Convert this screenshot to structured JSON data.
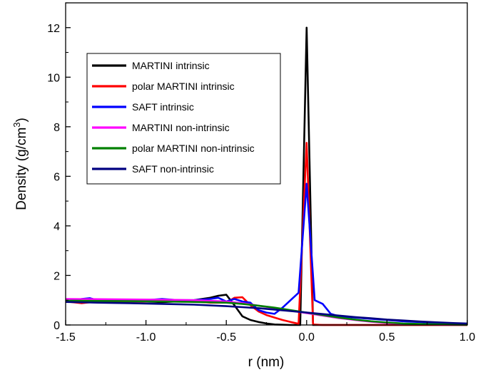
{
  "chart_data": {
    "type": "line",
    "title": "",
    "xlabel": "r (nm)",
    "ylabel": "Density (g/cm",
    "ylabel_superscript": "3",
    "ylabel_close": ")",
    "xlim": [
      -1.5,
      1.0
    ],
    "ylim": [
      0,
      13
    ],
    "x_ticks": [
      -1.5,
      -1.0,
      -0.5,
      0.0,
      0.5,
      1.0
    ],
    "x_tick_labels": [
      "-1.5",
      "-1.0",
      "-0.5",
      "0.0",
      "0.5",
      "1.0"
    ],
    "y_ticks": [
      0,
      2,
      4,
      6,
      8,
      10,
      12
    ],
    "y_tick_labels": [
      "0",
      "2",
      "4",
      "6",
      "8",
      "10",
      "12"
    ],
    "grid": false,
    "legend_position": "top-left",
    "series": [
      {
        "name": "MARTINI intrinsic",
        "color": "#000000",
        "points": [
          [
            -1.5,
            0.95
          ],
          [
            -1.4,
            0.9
          ],
          [
            -1.3,
            0.95
          ],
          [
            -1.2,
            0.9
          ],
          [
            -1.1,
            0.95
          ],
          [
            -1.0,
            0.95
          ],
          [
            -0.9,
            0.92
          ],
          [
            -0.8,
            0.95
          ],
          [
            -0.7,
            1.0
          ],
          [
            -0.6,
            1.1
          ],
          [
            -0.55,
            1.18
          ],
          [
            -0.5,
            1.22
          ],
          [
            -0.45,
            0.8
          ],
          [
            -0.4,
            0.35
          ],
          [
            -0.35,
            0.2
          ],
          [
            -0.3,
            0.12
          ],
          [
            -0.25,
            0.06
          ],
          [
            -0.2,
            0.02
          ],
          [
            -0.1,
            0.0
          ],
          [
            -0.04,
            0.0
          ],
          [
            0.0,
            12.0
          ],
          [
            0.04,
            0.0
          ],
          [
            0.1,
            0.0
          ],
          [
            0.5,
            0.0
          ],
          [
            1.0,
            0.0
          ]
        ]
      },
      {
        "name": "polar MARTINI intrinsic",
        "color": "#ff0000",
        "points": [
          [
            -1.5,
            0.95
          ],
          [
            -1.4,
            0.88
          ],
          [
            -1.3,
            0.95
          ],
          [
            -1.2,
            0.92
          ],
          [
            -1.1,
            0.95
          ],
          [
            -1.0,
            0.95
          ],
          [
            -0.9,
            1.0
          ],
          [
            -0.8,
            1.0
          ],
          [
            -0.7,
            0.95
          ],
          [
            -0.6,
            0.9
          ],
          [
            -0.5,
            0.9
          ],
          [
            -0.45,
            1.1
          ],
          [
            -0.4,
            1.12
          ],
          [
            -0.35,
            0.8
          ],
          [
            -0.3,
            0.55
          ],
          [
            -0.25,
            0.4
          ],
          [
            -0.2,
            0.3
          ],
          [
            -0.15,
            0.2
          ],
          [
            -0.1,
            0.12
          ],
          [
            -0.05,
            0.05
          ],
          [
            0.0,
            7.35
          ],
          [
            0.04,
            0.02
          ],
          [
            0.1,
            0.0
          ],
          [
            0.5,
            0.0
          ],
          [
            1.0,
            0.0
          ]
        ]
      },
      {
        "name": "SAFT intrinsic",
        "color": "#0000ff",
        "points": [
          [
            -1.5,
            0.95
          ],
          [
            -1.4,
            1.05
          ],
          [
            -1.35,
            1.08
          ],
          [
            -1.3,
            1.0
          ],
          [
            -1.2,
            1.0
          ],
          [
            -1.1,
            1.0
          ],
          [
            -1.0,
            1.0
          ],
          [
            -0.9,
            1.05
          ],
          [
            -0.8,
            1.0
          ],
          [
            -0.7,
            1.0
          ],
          [
            -0.6,
            1.05
          ],
          [
            -0.55,
            1.1
          ],
          [
            -0.5,
            0.95
          ],
          [
            -0.45,
            1.05
          ],
          [
            -0.4,
            0.95
          ],
          [
            -0.35,
            0.9
          ],
          [
            -0.3,
            0.6
          ],
          [
            -0.25,
            0.5
          ],
          [
            -0.2,
            0.45
          ],
          [
            -0.15,
            0.7
          ],
          [
            -0.1,
            1.0
          ],
          [
            -0.05,
            1.3
          ],
          [
            0.0,
            5.7
          ],
          [
            0.05,
            1.0
          ],
          [
            0.1,
            0.85
          ],
          [
            0.15,
            0.45
          ],
          [
            0.2,
            0.35
          ],
          [
            0.3,
            0.3
          ],
          [
            0.4,
            0.25
          ],
          [
            0.5,
            0.2
          ],
          [
            0.6,
            0.15
          ],
          [
            0.7,
            0.12
          ],
          [
            0.8,
            0.08
          ],
          [
            0.9,
            0.05
          ],
          [
            1.0,
            0.03
          ]
        ]
      },
      {
        "name": "MARTINI non-intrinsic",
        "color": "#ff00ff",
        "points": [
          [
            -1.5,
            1.05
          ],
          [
            -1.3,
            1.04
          ],
          [
            -1.1,
            1.03
          ],
          [
            -0.9,
            1.02
          ],
          [
            -0.7,
            1.0
          ],
          [
            -0.5,
            0.95
          ],
          [
            -0.4,
            0.88
          ],
          [
            -0.3,
            0.78
          ],
          [
            -0.2,
            0.68
          ],
          [
            -0.1,
            0.58
          ],
          [
            0.0,
            0.48
          ],
          [
            0.1,
            0.38
          ],
          [
            0.2,
            0.28
          ],
          [
            0.3,
            0.2
          ],
          [
            0.4,
            0.13
          ],
          [
            0.5,
            0.08
          ],
          [
            0.6,
            0.05
          ],
          [
            0.8,
            0.02
          ],
          [
            1.0,
            0.01
          ]
        ]
      },
      {
        "name": "polar MARTINI non-intrinsic",
        "color": "#008000",
        "points": [
          [
            -1.5,
            0.98
          ],
          [
            -1.3,
            0.97
          ],
          [
            -1.1,
            0.96
          ],
          [
            -0.9,
            0.95
          ],
          [
            -0.7,
            0.93
          ],
          [
            -0.5,
            0.9
          ],
          [
            -0.4,
            0.85
          ],
          [
            -0.3,
            0.78
          ],
          [
            -0.2,
            0.7
          ],
          [
            -0.1,
            0.6
          ],
          [
            0.0,
            0.5
          ],
          [
            0.1,
            0.4
          ],
          [
            0.2,
            0.3
          ],
          [
            0.3,
            0.22
          ],
          [
            0.4,
            0.15
          ],
          [
            0.5,
            0.1
          ],
          [
            0.6,
            0.06
          ],
          [
            0.8,
            0.03
          ],
          [
            1.0,
            0.01
          ]
        ]
      },
      {
        "name": "SAFT non-intrinsic",
        "color": "#000080",
        "points": [
          [
            -1.5,
            0.93
          ],
          [
            -1.3,
            0.9
          ],
          [
            -1.1,
            0.88
          ],
          [
            -0.9,
            0.85
          ],
          [
            -0.7,
            0.82
          ],
          [
            -0.5,
            0.76
          ],
          [
            -0.4,
            0.72
          ],
          [
            -0.3,
            0.68
          ],
          [
            -0.2,
            0.62
          ],
          [
            -0.1,
            0.56
          ],
          [
            0.0,
            0.5
          ],
          [
            0.1,
            0.44
          ],
          [
            0.2,
            0.38
          ],
          [
            0.3,
            0.32
          ],
          [
            0.4,
            0.27
          ],
          [
            0.5,
            0.22
          ],
          [
            0.6,
            0.18
          ],
          [
            0.7,
            0.14
          ],
          [
            0.8,
            0.11
          ],
          [
            0.9,
            0.08
          ],
          [
            1.0,
            0.06
          ]
        ]
      }
    ]
  }
}
